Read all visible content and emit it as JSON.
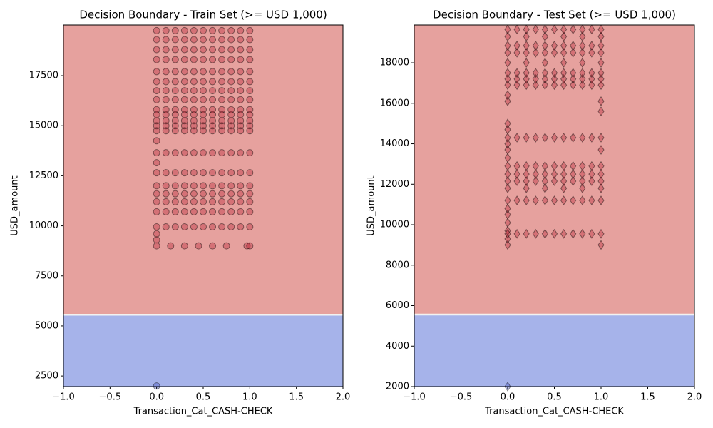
{
  "chart_data": [
    {
      "type": "scatter",
      "title": "Decision Boundary - Train Set (>= USD 1,000)",
      "x_label": "Transaction_Cat_CASH-CHECK",
      "y_label": "USD_amount",
      "xlim": [
        -1,
        2
      ],
      "ylim": [
        1970,
        20030
      ],
      "xticks": [
        {
          "value": -1,
          "label": "−1.0"
        },
        {
          "value": -0.5,
          "label": "−0.5"
        },
        {
          "value": 0,
          "label": "0.0"
        },
        {
          "value": 0.5,
          "label": "0.5"
        },
        {
          "value": 1,
          "label": "1.0"
        },
        {
          "value": 1.5,
          "label": "1.5"
        },
        {
          "value": 2,
          "label": "2.0"
        }
      ],
      "yticks": [
        2500,
        5000,
        7500,
        10000,
        12500,
        15000,
        17500
      ],
      "boundary": 5560,
      "color_below": "#a6b3ea",
      "color_above": "#e6a19e",
      "marker": "circle",
      "marker_color": "#b2182b",
      "rows": [
        {
          "y": 2000,
          "x": [
            0
          ],
          "color": "#3b4cc0"
        },
        {
          "y": 9000,
          "x": [
            0,
            0.15,
            0.3,
            0.45,
            0.6,
            0.75,
            0.97,
            1
          ]
        },
        {
          "y": 9300,
          "x": [
            0
          ]
        },
        {
          "y": 9600,
          "x": [
            0
          ]
        },
        {
          "y": 9950,
          "x": [
            0,
            0.1,
            0.2,
            0.3,
            0.4,
            0.5,
            0.6,
            0.7,
            0.8,
            0.9,
            1
          ]
        },
        {
          "y": 10700,
          "x": [
            0,
            0.1,
            0.2,
            0.3,
            0.4,
            0.5,
            0.6,
            0.7,
            0.8,
            0.9,
            1
          ]
        },
        {
          "y": 11200,
          "x": [
            0,
            0.1,
            0.2,
            0.3,
            0.4,
            0.5,
            0.6,
            0.7,
            0.8,
            0.9,
            1
          ]
        },
        {
          "y": 11600,
          "x": [
            0,
            0.1,
            0.2,
            0.3,
            0.4,
            0.5,
            0.6,
            0.7,
            0.8,
            0.9,
            1
          ]
        },
        {
          "y": 12000,
          "x": [
            0,
            0.1,
            0.2,
            0.3,
            0.4,
            0.5,
            0.6,
            0.7,
            0.8,
            0.9,
            1
          ]
        },
        {
          "y": 12650,
          "x": [
            0,
            0.1,
            0.2,
            0.3,
            0.4,
            0.5,
            0.6,
            0.7,
            0.8,
            0.9,
            1
          ]
        },
        {
          "y": 13150,
          "x": [
            0
          ]
        },
        {
          "y": 13650,
          "x": [
            0,
            0.1,
            0.2,
            0.3,
            0.4,
            0.5,
            0.6,
            0.7,
            0.8,
            0.9,
            1
          ]
        },
        {
          "y": 14250,
          "x": [
            0
          ]
        },
        {
          "y": 14750,
          "x": [
            0,
            0.1,
            0.2,
            0.3,
            0.4,
            0.5,
            0.6,
            0.7,
            0.8,
            0.9,
            1
          ]
        },
        {
          "y": 15000,
          "x": [
            0,
            0.1,
            0.2,
            0.3,
            0.4,
            0.5,
            0.6,
            0.7,
            0.8,
            0.9,
            1
          ]
        },
        {
          "y": 15250,
          "x": [
            0,
            0.1,
            0.2,
            0.3,
            0.4,
            0.5,
            0.6,
            0.7,
            0.8,
            0.9,
            1
          ]
        },
        {
          "y": 15550,
          "x": [
            0,
            0.1,
            0.2,
            0.3,
            0.4,
            0.5,
            0.6,
            0.7,
            0.8,
            0.9,
            1
          ]
        },
        {
          "y": 15800,
          "x": [
            0,
            0.1,
            0.2,
            0.3,
            0.4,
            0.5,
            0.6,
            0.7,
            0.8,
            0.9,
            1
          ]
        },
        {
          "y": 16300,
          "x": [
            0,
            0.1,
            0.2,
            0.3,
            0.4,
            0.5,
            0.6,
            0.7,
            0.8,
            0.9,
            1
          ]
        },
        {
          "y": 16750,
          "x": [
            0,
            0.1,
            0.2,
            0.3,
            0.4,
            0.5,
            0.6,
            0.7,
            0.8,
            0.9,
            1
          ]
        },
        {
          "y": 17200,
          "x": [
            0,
            0.1,
            0.2,
            0.3,
            0.4,
            0.5,
            0.6,
            0.7,
            0.8,
            0.9,
            1
          ]
        },
        {
          "y": 17700,
          "x": [
            0,
            0.1,
            0.2,
            0.3,
            0.4,
            0.5,
            0.6,
            0.7,
            0.8,
            0.9,
            1
          ]
        },
        {
          "y": 18300,
          "x": [
            0,
            0.1,
            0.2,
            0.3,
            0.4,
            0.5,
            0.6,
            0.7,
            0.8,
            0.9,
            1
          ]
        },
        {
          "y": 18800,
          "x": [
            0,
            0.1,
            0.2,
            0.3,
            0.4,
            0.5,
            0.6,
            0.7,
            0.8,
            0.9,
            1
          ]
        },
        {
          "y": 19300,
          "x": [
            0,
            0.1,
            0.2,
            0.3,
            0.4,
            0.5,
            0.6,
            0.7,
            0.8,
            0.9,
            1
          ]
        },
        {
          "y": 19750,
          "x": [
            0,
            0.1,
            0.2,
            0.3,
            0.4,
            0.5,
            0.6,
            0.7,
            0.8,
            0.9,
            1
          ]
        }
      ]
    },
    {
      "type": "scatter",
      "title": "Decision Boundary - Test Set (>= USD 1,000)",
      "x_label": "Transaction_Cat_CASH-CHECK",
      "y_label": "USD_amount",
      "xlim": [
        -1,
        2
      ],
      "ylim": [
        2000,
        19870
      ],
      "xticks": [
        {
          "value": -1,
          "label": "−1.0"
        },
        {
          "value": -0.5,
          "label": "−0.5"
        },
        {
          "value": 0,
          "label": "0.0"
        },
        {
          "value": 0.5,
          "label": "0.5"
        },
        {
          "value": 1,
          "label": "1.0"
        },
        {
          "value": 1.5,
          "label": "1.5"
        },
        {
          "value": 2,
          "label": "2.0"
        }
      ],
      "yticks": [
        2000,
        4000,
        6000,
        8000,
        10000,
        12000,
        14000,
        16000,
        18000
      ],
      "boundary": 5560,
      "color_below": "#a6b3ea",
      "color_above": "#e6a19e",
      "marker": "diamond",
      "marker_color": "#b2182b",
      "rows": [
        {
          "y": 2000,
          "x": [
            0
          ],
          "color": "#3b4cc0"
        },
        {
          "y": 9000,
          "x": [
            0,
            1
          ]
        },
        {
          "y": 9300,
          "x": [
            0
          ]
        },
        {
          "y": 9700,
          "x": [
            0
          ]
        },
        {
          "y": 10100,
          "x": [
            0
          ]
        },
        {
          "y": 10500,
          "x": [
            0
          ]
        },
        {
          "y": 10800,
          "x": [
            0
          ]
        },
        {
          "y": 9550,
          "x": [
            0,
            0.1,
            0.2,
            0.3,
            0.4,
            0.5,
            0.6,
            0.7,
            0.8,
            0.9,
            1
          ]
        },
        {
          "y": 11200,
          "x": [
            0,
            0.1,
            0.2,
            0.3,
            0.4,
            0.5,
            0.6,
            0.7,
            0.8,
            0.9,
            1
          ]
        },
        {
          "y": 11800,
          "x": [
            0,
            0.2,
            0.4,
            0.6,
            0.8,
            1
          ]
        },
        {
          "y": 12150,
          "x": [
            0,
            0.1,
            0.2,
            0.3,
            0.4,
            0.5,
            0.6,
            0.7,
            0.8,
            0.9,
            1
          ]
        },
        {
          "y": 12500,
          "x": [
            0,
            0.1,
            0.2,
            0.3,
            0.4,
            0.5,
            0.6,
            0.7,
            0.8,
            0.9,
            1
          ]
        },
        {
          "y": 12900,
          "x": [
            0,
            0.1,
            0.2,
            0.3,
            0.4,
            0.5,
            0.6,
            0.7,
            0.8,
            0.9,
            1
          ]
        },
        {
          "y": 13300,
          "x": [
            0
          ]
        },
        {
          "y": 13700,
          "x": [
            0,
            1
          ]
        },
        {
          "y": 14000,
          "x": [
            0
          ]
        },
        {
          "y": 14300,
          "x": [
            0,
            0.1,
            0.2,
            0.3,
            0.4,
            0.5,
            0.6,
            0.7,
            0.8,
            0.9,
            1
          ]
        },
        {
          "y": 14700,
          "x": [
            0
          ]
        },
        {
          "y": 15000,
          "x": [
            0
          ]
        },
        {
          "y": 15600,
          "x": [
            1
          ]
        },
        {
          "y": 16100,
          "x": [
            0,
            1
          ]
        },
        {
          "y": 16400,
          "x": [
            0
          ]
        },
        {
          "y": 16900,
          "x": [
            0,
            0.1,
            0.2,
            0.3,
            0.4,
            0.5,
            0.6,
            0.7,
            0.8,
            0.9,
            1
          ]
        },
        {
          "y": 17200,
          "x": [
            0,
            0.1,
            0.2,
            0.3,
            0.4,
            0.5,
            0.6,
            0.7,
            0.8,
            0.9,
            1
          ]
        },
        {
          "y": 17500,
          "x": [
            0,
            0.1,
            0.2,
            0.3,
            0.4,
            0.5,
            0.6,
            0.7,
            0.8,
            0.9,
            1
          ]
        },
        {
          "y": 18000,
          "x": [
            0,
            0.2,
            0.4,
            0.6,
            0.8,
            1
          ]
        },
        {
          "y": 18500,
          "x": [
            0,
            0.1,
            0.2,
            0.3,
            0.4,
            0.5,
            0.6,
            0.7,
            0.8,
            0.9,
            1
          ]
        },
        {
          "y": 18850,
          "x": [
            0,
            0.1,
            0.2,
            0.3,
            0.4,
            0.5,
            0.6,
            0.7,
            0.8,
            0.9,
            1
          ]
        },
        {
          "y": 19300,
          "x": [
            0,
            0.2,
            0.4,
            0.6,
            0.8,
            1
          ]
        },
        {
          "y": 19650,
          "x": [
            0,
            0.1,
            0.2,
            0.3,
            0.4,
            0.5,
            0.6,
            0.7,
            0.8,
            0.9,
            1
          ]
        }
      ]
    }
  ]
}
